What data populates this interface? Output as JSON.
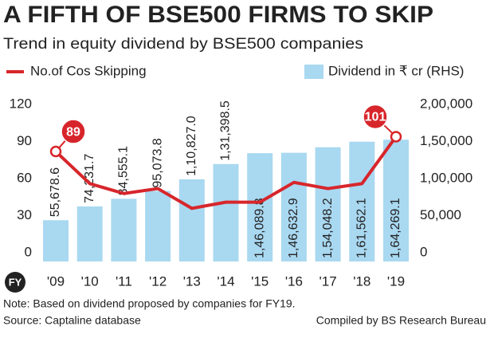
{
  "chart_data": {
    "type": "bar-line",
    "title": "A FIFTH OF BSE500 FIRMS TO SKIP",
    "subtitle": "Trend in equity dividend by BSE500 companies",
    "x_label": "FY",
    "categories": [
      "'09",
      "'10",
      "'11",
      "'12",
      "'13",
      "'14",
      "'15",
      "'16",
      "'17",
      "'18",
      "'19"
    ],
    "series": [
      {
        "name": "No.of Cos Skipping",
        "type": "line",
        "color": "#d7262b",
        "axis": "y",
        "values": [
          89,
          63,
          55,
          59,
          43,
          48,
          48,
          64,
          59,
          63,
          101
        ],
        "value_labels": [
          "89",
          null,
          null,
          null,
          null,
          null,
          null,
          null,
          null,
          null,
          "101"
        ]
      },
      {
        "name": "Dividend in ₹ cr (RHS)",
        "type": "bar",
        "color": "#a9d8f1",
        "axis": "y2",
        "values": [
          55678.6,
          74231.7,
          84555.1,
          95073.8,
          110827.0,
          131398.5,
          146089.8,
          146632.9,
          154048.2,
          161562.1,
          164269.1
        ],
        "value_labels": [
          "55,678.6",
          "74,231.7",
          "84,555.1",
          "95,073.8",
          "1,10,827.0",
          "1,31,398.5",
          "1,46,089.8",
          "1,46,632.9",
          "1,54,048.2",
          "1,61,562.1",
          "1,64,269.1"
        ]
      }
    ],
    "ylim": [
      0,
      120
    ],
    "yticks": [
      0,
      30,
      60,
      90,
      120
    ],
    "y2lim": [
      0,
      200000
    ],
    "y2ticks": [
      0,
      {
        "value": 50000,
        "label": "50,000"
      },
      {
        "value": 100000,
        "label": "1,00,000"
      },
      {
        "value": 150000,
        "label": "1,50,000"
      },
      {
        "value": 200000,
        "label": "2,00,000"
      }
    ],
    "grid": false,
    "note": "Note: Based on dividend proposed by companies for FY19.",
    "source": "Source: Captaline database",
    "credit": "Compiled by BS Research Bureau"
  }
}
